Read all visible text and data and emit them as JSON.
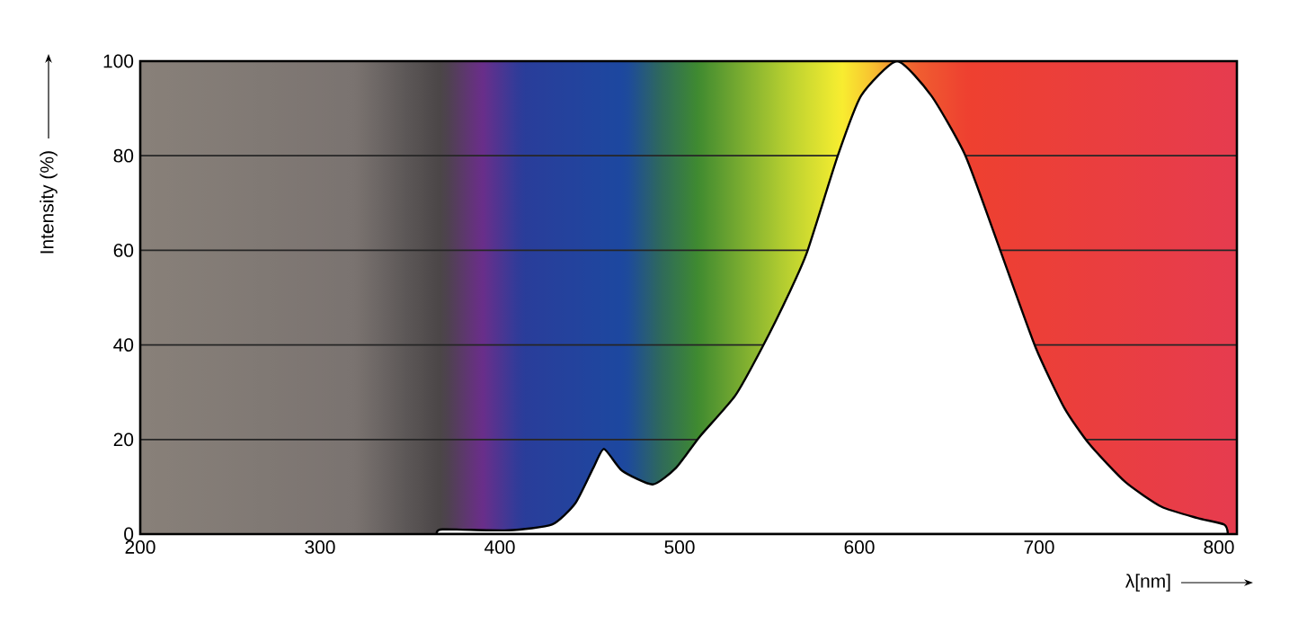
{
  "chart_data": {
    "type": "area",
    "xlabel": "λ[nm]",
    "ylabel": "Intensity (%)",
    "xlim": [
      200,
      810
    ],
    "ylim": [
      0,
      100
    ],
    "xticks": [
      200,
      300,
      400,
      500,
      600,
      700,
      800
    ],
    "yticks": [
      0,
      20,
      40,
      60,
      80,
      100
    ],
    "grid": "y",
    "series": [
      {
        "color": "#ffffff",
        "x": [
          365,
          368,
          405,
          429,
          442,
          452,
          458,
          468,
          485,
          498,
          511,
          531,
          546,
          561,
          571,
          588,
          601,
          621,
          640,
          659,
          678,
          698,
          714,
          728,
          748,
          768,
          788,
          803,
          805
        ],
        "values": [
          0,
          1,
          0.8,
          2,
          6.5,
          14,
          18,
          13.4,
          10.5,
          14,
          20.5,
          29.3,
          39.5,
          51,
          59.7,
          80,
          92.7,
          100,
          92.7,
          80,
          60.4,
          39.5,
          26.7,
          19,
          11,
          5.8,
          3.4,
          2,
          0
        ]
      }
    ]
  }
}
